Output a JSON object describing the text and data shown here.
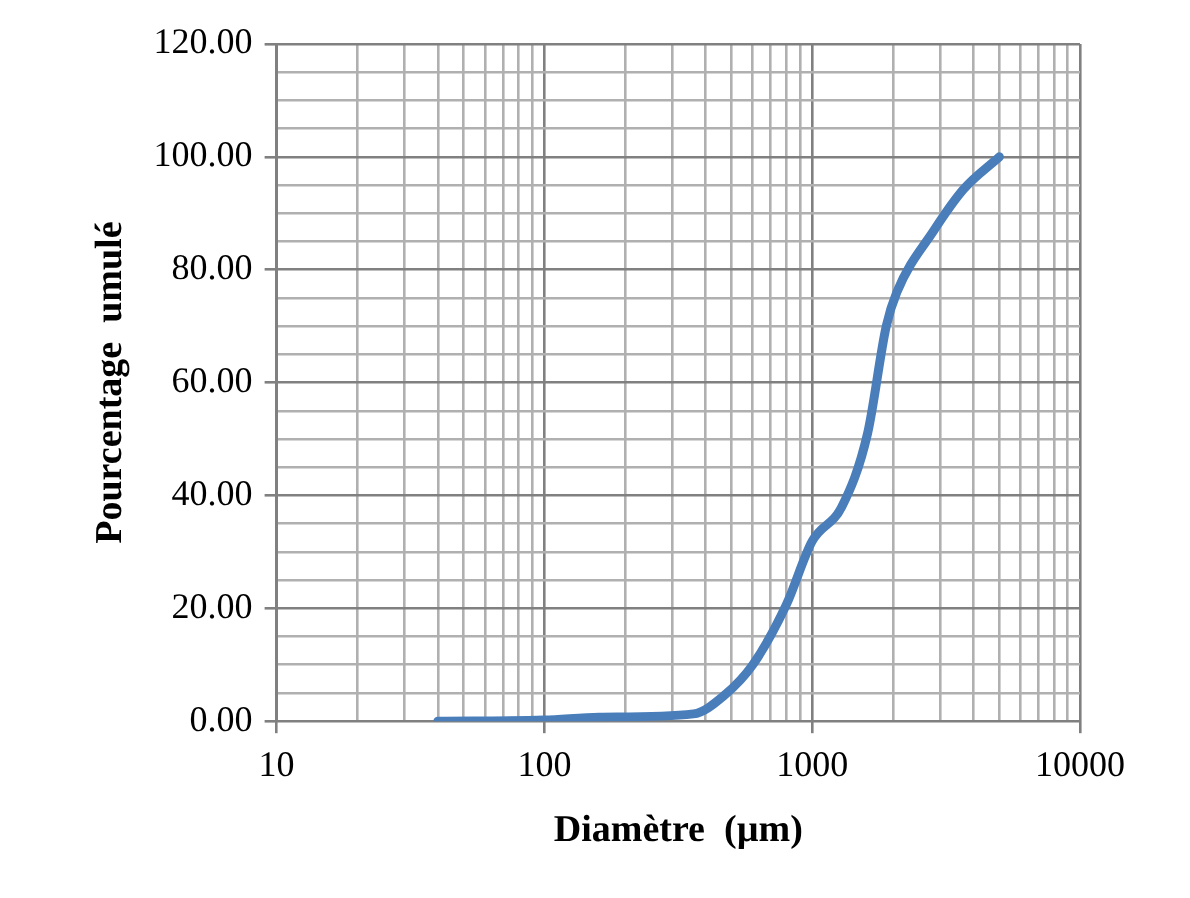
{
  "chart_data": {
    "type": "line",
    "xlabel": "Diamètre  (µm)",
    "ylabel": "Pourcentage  umulé",
    "x": [
      40,
      100,
      160,
      360,
      470,
      600,
      800,
      1000,
      1290,
      1610,
      1890,
      2070,
      2850,
      3680,
      5000
    ],
    "series": [
      {
        "color": "#4a7ebb",
        "values": [
          0,
          0.2,
          0.7,
          1.3,
          4.6,
          10,
          20.6,
          31.9,
          38,
          51,
          70,
          76,
          87,
          94.3,
          100
        ]
      }
    ],
    "log": "x",
    "xlim": [
      10,
      10000
    ],
    "xticks": [
      10,
      {
        "value": 20,
        "label": null
      },
      {
        "value": 30,
        "label": null
      },
      {
        "value": 40,
        "label": null
      },
      {
        "value": 50,
        "label": null
      },
      {
        "value": 60,
        "label": null
      },
      {
        "value": 70,
        "label": null
      },
      {
        "value": 80,
        "label": null
      },
      {
        "value": 90,
        "label": null
      },
      100,
      {
        "value": 200,
        "label": null
      },
      {
        "value": 300,
        "label": null
      },
      {
        "value": 400,
        "label": null
      },
      {
        "value": 500,
        "label": null
      },
      {
        "value": 600,
        "label": null
      },
      {
        "value": 700,
        "label": null
      },
      {
        "value": 800,
        "label": null
      },
      {
        "value": 900,
        "label": null
      },
      1000,
      {
        "value": 2000,
        "label": null
      },
      {
        "value": 3000,
        "label": null
      },
      {
        "value": 4000,
        "label": null
      },
      {
        "value": 5000,
        "label": null
      },
      {
        "value": 6000,
        "label": null
      },
      {
        "value": 7000,
        "label": null
      },
      {
        "value": 8000,
        "label": null
      },
      {
        "value": 9000,
        "label": null
      },
      10000
    ],
    "ylim": [
      0,
      120
    ],
    "yticks": [
      {
        "value": 0,
        "label": "0.00"
      },
      {
        "value": 5,
        "label": null
      },
      {
        "value": 10,
        "label": null
      },
      {
        "value": 15,
        "label": null
      },
      {
        "value": 20,
        "label": "20.00"
      },
      {
        "value": 25,
        "label": null
      },
      {
        "value": 30,
        "label": null
      },
      {
        "value": 35,
        "label": null
      },
      {
        "value": 40,
        "label": "40.00"
      },
      {
        "value": 45,
        "label": null
      },
      {
        "value": 50,
        "label": null
      },
      {
        "value": 55,
        "label": null
      },
      {
        "value": 60,
        "label": "60.00"
      },
      {
        "value": 65,
        "label": null
      },
      {
        "value": 70,
        "label": null
      },
      {
        "value": 75,
        "label": null
      },
      {
        "value": 80,
        "label": "80.00"
      },
      {
        "value": 85,
        "label": null
      },
      {
        "value": 90,
        "label": null
      },
      {
        "value": 95,
        "label": null
      },
      {
        "value": 100,
        "label": "100.00"
      },
      {
        "value": 105,
        "label": null
      },
      {
        "value": 110,
        "label": null
      },
      {
        "value": 115,
        "label": null
      },
      {
        "value": 120,
        "label": "120.00"
      }
    ],
    "grid": true,
    "marker": "none",
    "line_style": "solid",
    "legend": false
  }
}
